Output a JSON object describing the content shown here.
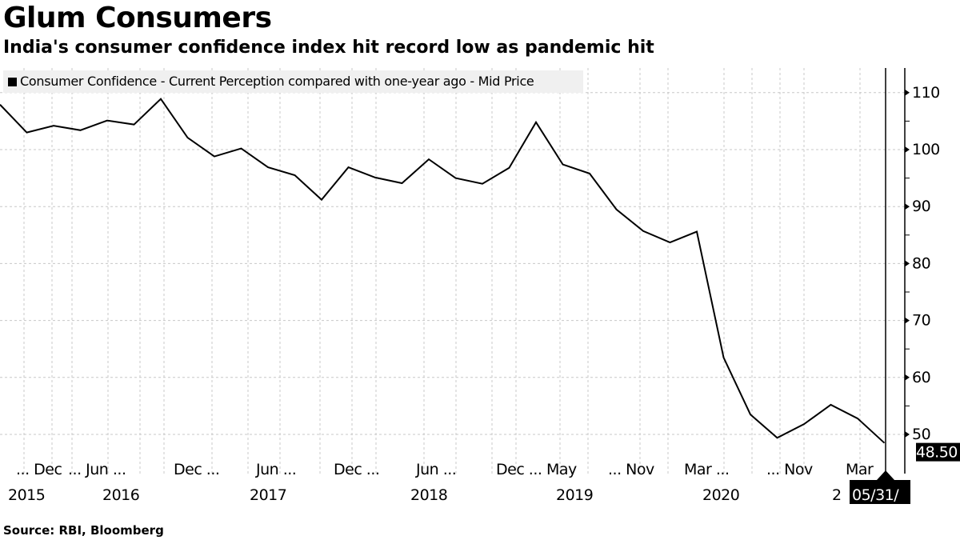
{
  "title": "Glum Consumers",
  "subtitle": "India's consumer confidence index hit record low as pandemic hit",
  "source": "Source: RBI, Bloomberg",
  "chart_data": {
    "type": "line",
    "title": "Glum Consumers",
    "subtitle": "India's consumer confidence index hit record low as pandemic hit",
    "legend": {
      "position": "top-left",
      "entries": [
        "Consumer Confidence - Current Perception compared with one-year ago - Mid Price"
      ]
    },
    "series": [
      {
        "name": "Consumer Confidence - Current Perception compared with one-year ago - Mid Price",
        "color": "#000000",
        "x": [
          "2015-06",
          "2015-09",
          "2015-12",
          "2016-03",
          "2016-06",
          "2016-09",
          "2016-11",
          "2016-12",
          "2017-03",
          "2017-04",
          "2017-06",
          "2017-08",
          "2017-10",
          "2017-12",
          "2018-02",
          "2018-04",
          "2018-06",
          "2018-08",
          "2018-10",
          "2018-12",
          "2019-03",
          "2019-05",
          "2019-07",
          "2019-09",
          "2019-11",
          "2020-01",
          "2020-03",
          "2020-05",
          "2020-07",
          "2020-09",
          "2020-11",
          "2021-01",
          "2021-03",
          "2021-05"
        ],
        "values": [
          107.9,
          103.0,
          104.2,
          103.4,
          105.1,
          104.4,
          108.9,
          102.1,
          98.8,
          100.2,
          96.9,
          95.5,
          91.2,
          96.9,
          95.1,
          94.1,
          98.3,
          95.0,
          94.0,
          96.8,
          104.8,
          97.4,
          95.8,
          89.5,
          85.7,
          83.7,
          85.6,
          63.5,
          53.5,
          49.4,
          51.8,
          55.2,
          52.8,
          48.5
        ]
      }
    ],
    "last_value_label": "48.50",
    "cursor_date_label": "05/31/",
    "y_axis": {
      "position": "right",
      "ticks": [
        "50",
        "60",
        "70",
        "80",
        "90",
        "100",
        "110"
      ],
      "range": [
        43,
        114
      ]
    },
    "x_axis": {
      "tick_labels_row1": [
        "... Dec",
        "... Jun ...",
        "Dec ...",
        "Jun ...",
        "Dec ...",
        "Jun ...",
        "Dec ... May",
        "... Nov",
        "Mar ...",
        "... Nov",
        "Mar"
      ],
      "tick_labels_row2": [
        "2015",
        "2016",
        "2017",
        "2018",
        "2019",
        "2020",
        "2"
      ]
    },
    "grid": true
  }
}
